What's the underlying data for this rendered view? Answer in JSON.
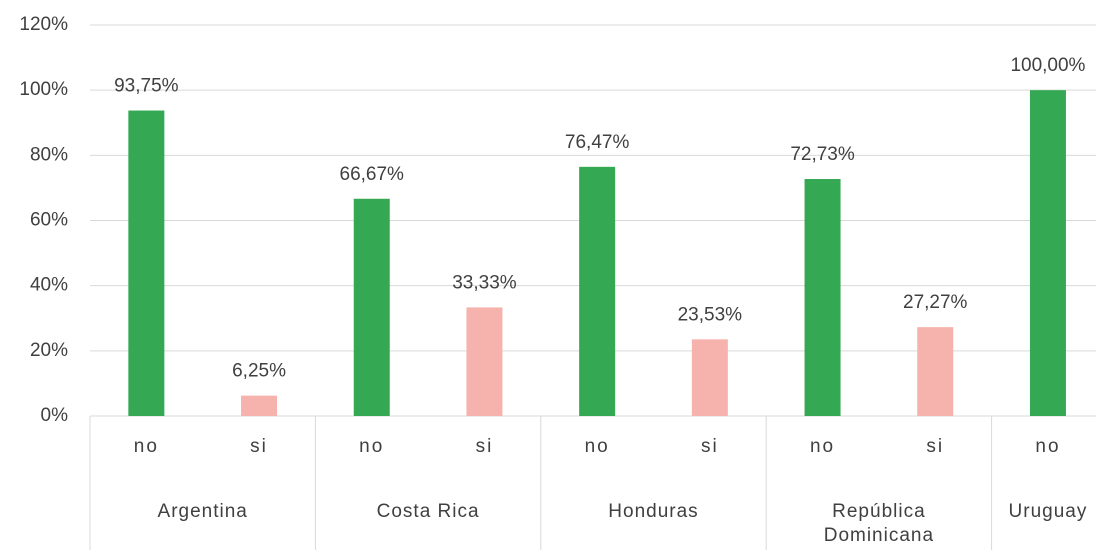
{
  "chart_data": {
    "type": "bar",
    "groups": [
      {
        "label": "Argentina",
        "categories": [
          "no",
          "si"
        ],
        "values": [
          93.75,
          6.25
        ],
        "value_labels": [
          "93,75%",
          "6,25%"
        ]
      },
      {
        "label": "Costa Rica",
        "categories": [
          "no",
          "si"
        ],
        "values": [
          66.67,
          33.33
        ],
        "value_labels": [
          "66,67%",
          "33,33%"
        ]
      },
      {
        "label": "Honduras",
        "categories": [
          "no",
          "si"
        ],
        "values": [
          76.47,
          23.53
        ],
        "value_labels": [
          "76,47%",
          "23,53%"
        ]
      },
      {
        "label": "República Dominicana",
        "categories": [
          "no",
          "si"
        ],
        "values": [
          72.73,
          27.27
        ],
        "value_labels": [
          "72,73%",
          "27,27%"
        ]
      },
      {
        "label": "Uruguay",
        "categories": [
          "no"
        ],
        "values": [
          100
        ],
        "value_labels": [
          "100,00%"
        ]
      }
    ],
    "category_colors": {
      "no": "#34a853",
      "si": "#f6b3ad"
    },
    "ylim": [
      0,
      120
    ],
    "yticks": [
      {
        "value": 0,
        "label": "0%"
      },
      {
        "value": 20,
        "label": "20%"
      },
      {
        "value": 40,
        "label": "40%"
      },
      {
        "value": 60,
        "label": "60%"
      },
      {
        "value": 80,
        "label": "80%"
      },
      {
        "value": 100,
        "label": "100%"
      },
      {
        "value": 120,
        "label": "120%"
      }
    ],
    "grid": true
  }
}
